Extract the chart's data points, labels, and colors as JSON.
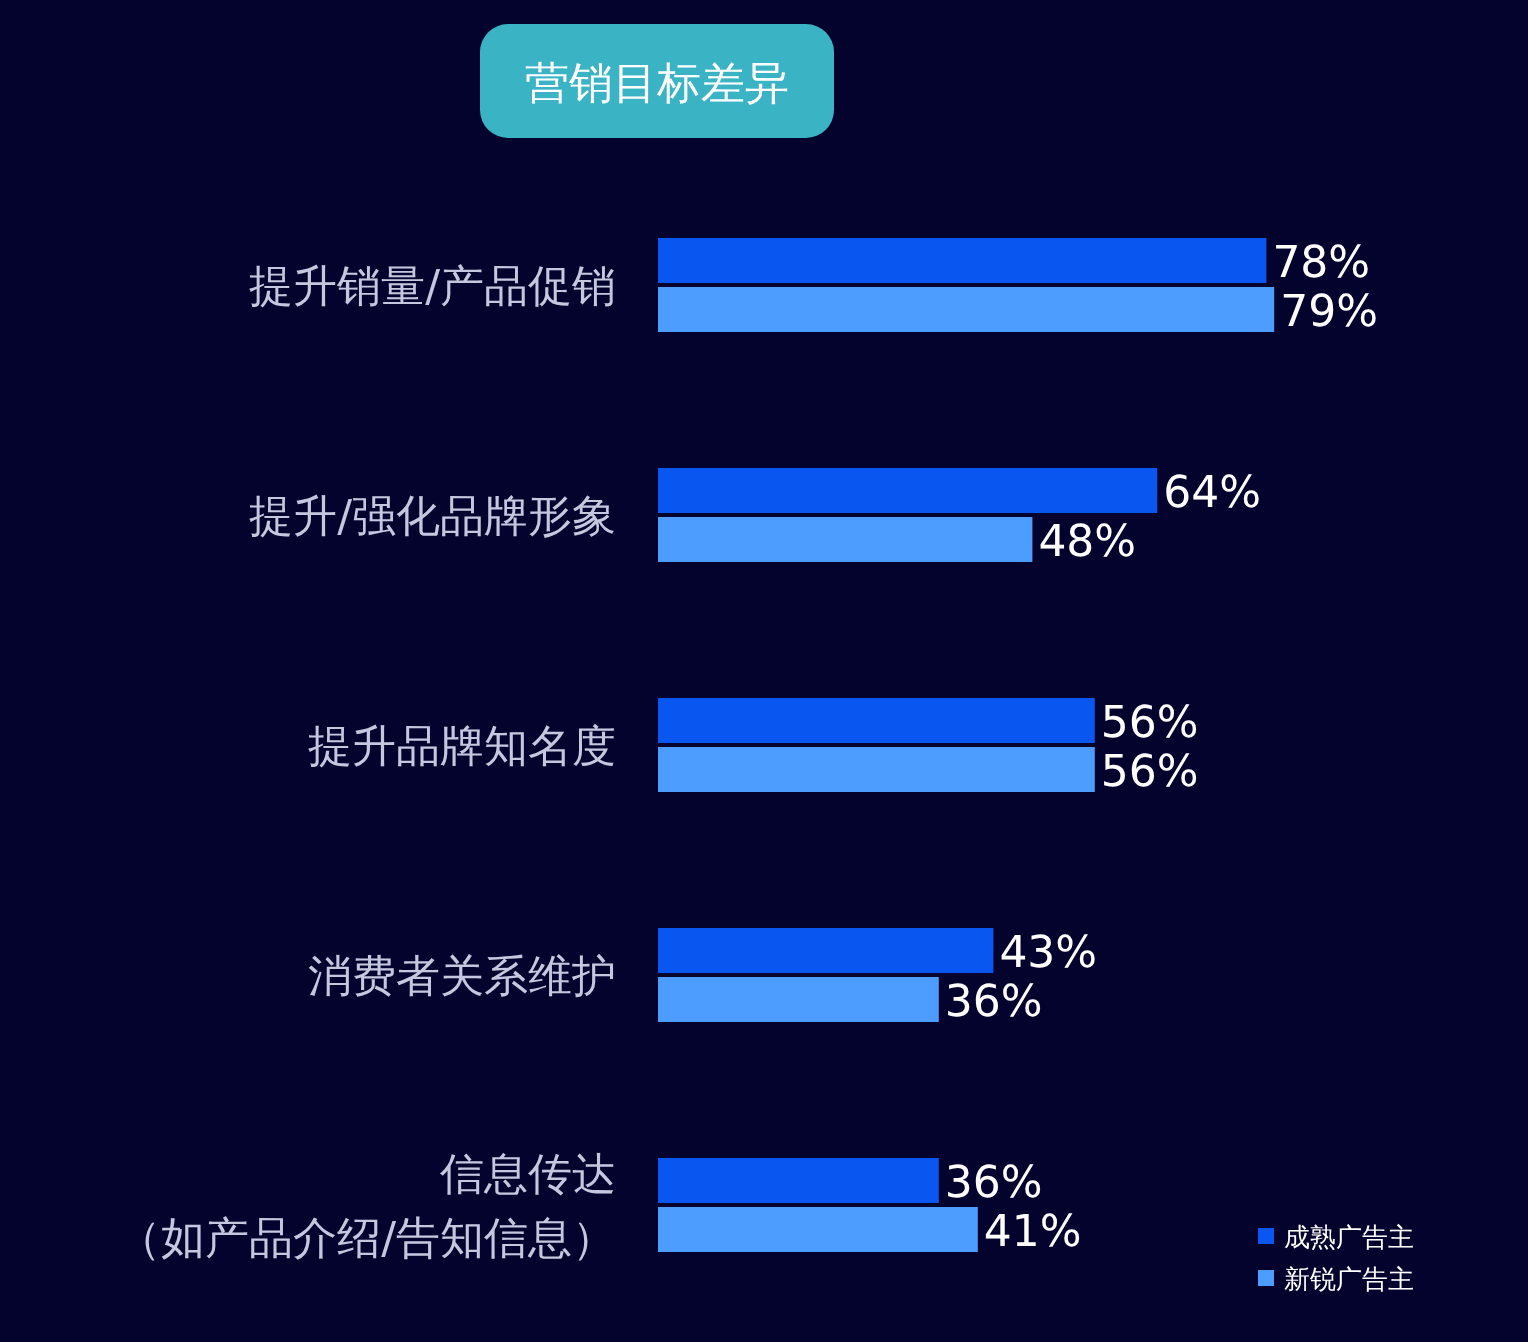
{
  "chart_data": {
    "type": "bar",
    "orientation": "horizontal",
    "title": "营销目标差异",
    "legend": "bottom right",
    "categories": [
      "提升销量/产品促销",
      "提升/强化品牌形象",
      "提升品牌知名度",
      "消费者关系维护",
      "信息传达（如产品介绍/告知信息）"
    ],
    "series": [
      {
        "name": "成熟广告主",
        "color": "#0a56f0",
        "values": [
          78,
          64,
          56,
          43,
          36
        ],
        "value_labels": [
          "78%",
          "64%",
          "56%",
          "43%",
          "36%"
        ]
      },
      {
        "name": "新锐广告主",
        "color": "#4d9cff",
        "values": [
          79,
          48,
          56,
          36,
          41
        ],
        "value_labels": [
          "79%",
          "48%",
          "56%",
          "36%",
          "41%"
        ]
      }
    ]
  }
}
